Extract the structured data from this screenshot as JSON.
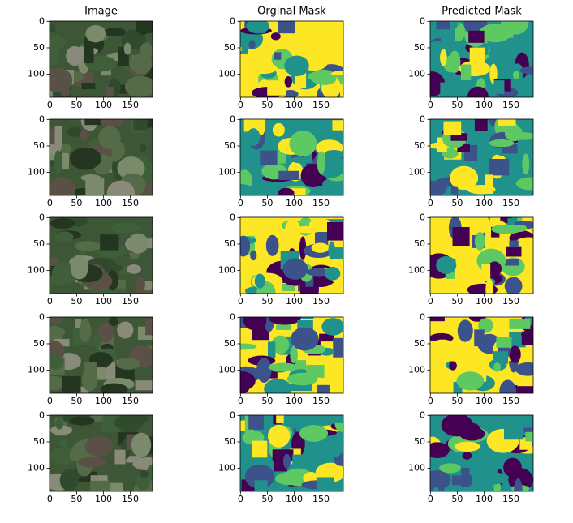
{
  "chart_data": [
    {
      "type": "image",
      "title": "Image",
      "xlim": [
        -0.5,
        191.5
      ],
      "ylim": [
        143.5,
        -0.5
      ],
      "xticks": [
        0,
        50,
        100,
        150
      ],
      "yticks": [
        0,
        50,
        100
      ]
    },
    {
      "type": "image",
      "title": "Orginal Mask",
      "xlim": [
        -0.5,
        191.5
      ],
      "ylim": [
        143.5,
        -0.5
      ],
      "xticks": [
        0,
        50,
        100,
        150
      ],
      "yticks": [
        0,
        50,
        100
      ]
    },
    {
      "type": "image",
      "title": "Predicted Mask",
      "xlim": [
        -0.5,
        191.5
      ],
      "ylim": [
        143.5,
        -0.5
      ],
      "xticks": [
        0,
        50,
        100,
        150
      ],
      "yticks": [
        0,
        50,
        100
      ]
    },
    {
      "type": "image",
      "xlim": [
        -0.5,
        191.5
      ],
      "ylim": [
        143.5,
        -0.5
      ],
      "xticks": [
        0,
        50,
        100,
        150
      ],
      "yticks": [
        0,
        50,
        100
      ]
    },
    {
      "type": "image",
      "xlim": [
        -0.5,
        191.5
      ],
      "ylim": [
        143.5,
        -0.5
      ],
      "xticks": [
        0,
        50,
        100,
        150
      ],
      "yticks": [
        0,
        50,
        100
      ]
    },
    {
      "type": "image",
      "xlim": [
        -0.5,
        191.5
      ],
      "ylim": [
        143.5,
        -0.5
      ],
      "xticks": [
        0,
        50,
        100,
        150
      ],
      "yticks": [
        0,
        50,
        100
      ]
    },
    {
      "type": "image",
      "xlim": [
        -0.5,
        191.5
      ],
      "ylim": [
        143.5,
        -0.5
      ],
      "xticks": [
        0,
        50,
        100,
        150
      ],
      "yticks": [
        0,
        50,
        100
      ]
    },
    {
      "type": "image",
      "xlim": [
        -0.5,
        191.5
      ],
      "ylim": [
        143.5,
        -0.5
      ],
      "xticks": [
        0,
        50,
        100,
        150
      ],
      "yticks": [
        0,
        50,
        100
      ]
    },
    {
      "type": "image",
      "xlim": [
        -0.5,
        191.5
      ],
      "ylim": [
        143.5,
        -0.5
      ],
      "xticks": [
        0,
        50,
        100,
        150
      ],
      "yticks": [
        0,
        50,
        100
      ]
    },
    {
      "type": "image",
      "xlim": [
        -0.5,
        191.5
      ],
      "ylim": [
        143.5,
        -0.5
      ],
      "xticks": [
        0,
        50,
        100,
        150
      ],
      "yticks": [
        0,
        50,
        100
      ]
    },
    {
      "type": "image",
      "xlim": [
        -0.5,
        191.5
      ],
      "ylim": [
        143.5,
        -0.5
      ],
      "xticks": [
        0,
        50,
        100,
        150
      ],
      "yticks": [
        0,
        50,
        100
      ]
    },
    {
      "type": "image",
      "xlim": [
        -0.5,
        191.5
      ],
      "ylim": [
        143.5,
        -0.5
      ],
      "xticks": [
        0,
        50,
        100,
        150
      ],
      "yticks": [
        0,
        50,
        100
      ]
    },
    {
      "type": "image",
      "xlim": [
        -0.5,
        191.5
      ],
      "ylim": [
        143.5,
        -0.5
      ],
      "xticks": [
        0,
        50,
        100,
        150
      ],
      "yticks": [
        0,
        50,
        100
      ]
    },
    {
      "type": "image",
      "xlim": [
        -0.5,
        191.5
      ],
      "ylim": [
        143.5,
        -0.5
      ],
      "xticks": [
        0,
        50,
        100,
        150
      ],
      "yticks": [
        0,
        50,
        100
      ]
    },
    {
      "type": "image",
      "xlim": [
        -0.5,
        191.5
      ],
      "ylim": [
        143.5,
        -0.5
      ],
      "xticks": [
        0,
        50,
        100,
        150
      ],
      "yticks": [
        0,
        50,
        100
      ]
    }
  ]
}
